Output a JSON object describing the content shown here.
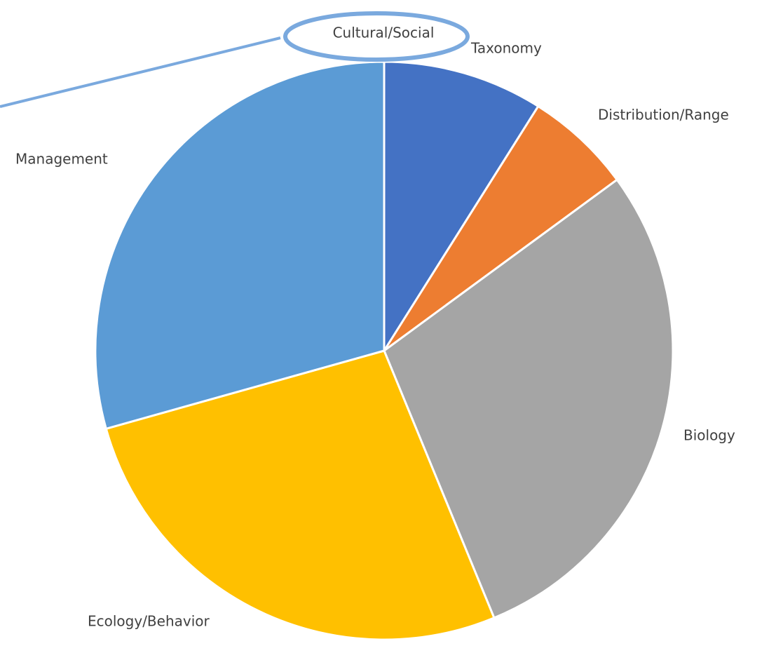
{
  "chart_data": {
    "type": "pie",
    "categories": [
      "Cultural/Social",
      "Taxonomy",
      "Distribution/Range",
      "Biology",
      "Ecology/Behavior",
      "Management"
    ],
    "values": [
      0,
      9,
      6,
      29,
      27,
      29.5
    ],
    "colors": [
      "#70ad47",
      "#4472c4",
      "#ed7d31",
      "#a5a5a5",
      "#ffc000",
      "#5b9bd5"
    ]
  }
}
